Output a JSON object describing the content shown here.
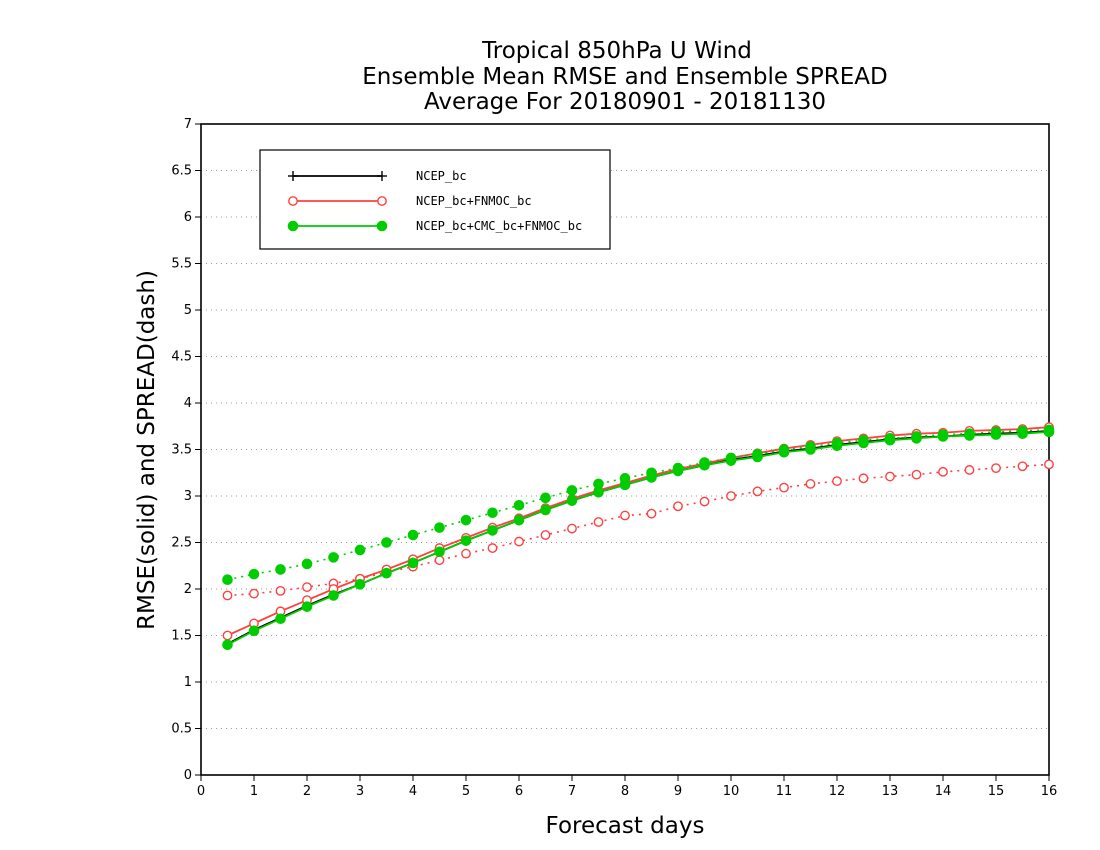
{
  "chart_data": {
    "type": "line",
    "title": [
      "Tropical 850hPa U Wind",
      "Ensemble Mean RMSE and Ensemble SPREAD",
      "Average For 20180901 - 20181130"
    ],
    "xlabel": "Forecast days",
    "ylabel": "RMSE(solid) and SPREAD(dash)",
    "xlim": [
      0,
      16
    ],
    "ylim": [
      0,
      7
    ],
    "x_ticks": [
      "0",
      "1",
      "2",
      "3",
      "4",
      "5",
      "6",
      "7",
      "8",
      "9",
      "10",
      "11",
      "12",
      "13",
      "14",
      "15",
      "16"
    ],
    "y_ticks": [
      "0",
      "0.5",
      "1",
      "1.5",
      "2",
      "2.5",
      "3",
      "3.5",
      "4",
      "4.5",
      "5",
      "5.5",
      "6",
      "6.5",
      "7"
    ],
    "grid": "horizontal dotted",
    "legend_position": "top-left",
    "x": [
      0.5,
      1,
      1.5,
      2,
      2.5,
      3,
      3.5,
      4,
      4.5,
      5,
      5.5,
      6,
      6.5,
      7,
      7.5,
      8,
      8.5,
      9,
      9.5,
      10,
      10.5,
      11,
      11.5,
      12,
      12.5,
      13,
      13.5,
      14,
      14.5,
      15,
      15.5,
      16
    ],
    "series": [
      {
        "name": "NCEP_bc",
        "color": "#000000",
        "marker": "plus",
        "rmse": [
          1.41,
          1.56,
          1.69,
          1.82,
          1.94,
          2.05,
          2.17,
          2.28,
          2.4,
          2.52,
          2.63,
          2.74,
          2.85,
          2.95,
          3.04,
          3.12,
          3.2,
          3.27,
          3.33,
          3.39,
          3.43,
          3.48,
          3.51,
          3.55,
          3.58,
          3.61,
          3.63,
          3.64,
          3.66,
          3.67,
          3.68,
          3.7
        ],
        "spread": null
      },
      {
        "name": "NCEP_bc+FNMOC_bc",
        "color": "#ff4040",
        "marker": "open-circle",
        "rmse": [
          1.5,
          1.63,
          1.76,
          1.88,
          2.0,
          2.11,
          2.21,
          2.32,
          2.44,
          2.55,
          2.66,
          2.76,
          2.87,
          2.97,
          3.06,
          3.14,
          3.22,
          3.29,
          3.35,
          3.41,
          3.46,
          3.51,
          3.55,
          3.59,
          3.62,
          3.65,
          3.67,
          3.68,
          3.7,
          3.71,
          3.72,
          3.74
        ],
        "spread": [
          1.93,
          1.95,
          1.98,
          2.02,
          2.06,
          2.11,
          2.18,
          2.24,
          2.31,
          2.38,
          2.44,
          2.51,
          2.58,
          2.65,
          2.72,
          2.79,
          2.81,
          2.89,
          2.94,
          3.0,
          3.05,
          3.09,
          3.13,
          3.16,
          3.19,
          3.21,
          3.23,
          3.26,
          3.28,
          3.3,
          3.32,
          3.34
        ]
      },
      {
        "name": "NCEP_bc+CMC_bc+FNMOC_bc",
        "color": "#00cc00",
        "marker": "filled-circle",
        "rmse": [
          1.4,
          1.55,
          1.68,
          1.81,
          1.93,
          2.05,
          2.17,
          2.28,
          2.4,
          2.52,
          2.63,
          2.74,
          2.85,
          2.95,
          3.04,
          3.12,
          3.2,
          3.27,
          3.33,
          3.38,
          3.42,
          3.47,
          3.5,
          3.54,
          3.57,
          3.6,
          3.62,
          3.64,
          3.65,
          3.66,
          3.67,
          3.69
        ],
        "spread": [
          2.1,
          2.16,
          2.21,
          2.27,
          2.34,
          2.42,
          2.5,
          2.58,
          2.66,
          2.74,
          2.82,
          2.9,
          2.98,
          3.06,
          3.13,
          3.19,
          3.25,
          3.3,
          3.36,
          3.41,
          3.45,
          3.5,
          3.53,
          3.57,
          3.6,
          3.62,
          3.64,
          3.66,
          3.67,
          3.69,
          3.7,
          3.71
        ]
      }
    ]
  }
}
